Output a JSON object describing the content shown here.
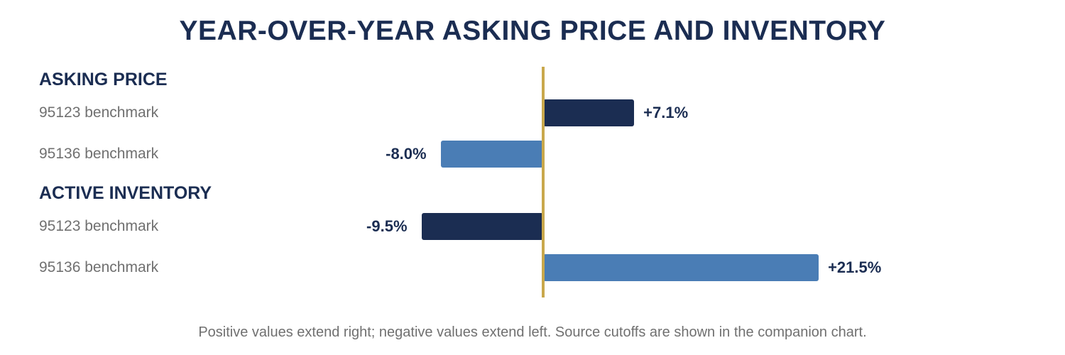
{
  "title": "YEAR-OVER-YEAR ASKING PRICE AND INVENTORY",
  "footnote": "Positive values extend right; negative values extend left. Source cutoffs are shown in the companion chart.",
  "colors": {
    "zero_line": "#c9a84c",
    "series_95123": "#1b2d52",
    "series_95136": "#4a7db5",
    "text_dark": "#1b2d52",
    "text_muted": "#707070"
  },
  "chart_data": {
    "type": "bar",
    "orientation": "horizontal",
    "unit": "%",
    "xlim": [
      -17,
      30
    ],
    "groups": [
      {
        "label": "ASKING PRICE",
        "rows": [
          {
            "label": "95123 benchmark",
            "value": 7.1,
            "value_label": "+7.1%",
            "color_key": "series_95123"
          },
          {
            "label": "95136 benchmark",
            "value": -8.0,
            "value_label": "-8.0%",
            "color_key": "series_95136"
          }
        ]
      },
      {
        "label": "ACTIVE INVENTORY",
        "rows": [
          {
            "label": "95123 benchmark",
            "value": -9.5,
            "value_label": "-9.5%",
            "color_key": "series_95123"
          },
          {
            "label": "95136 benchmark",
            "value": 21.5,
            "value_label": "+21.5%",
            "color_key": "series_95136"
          }
        ]
      }
    ]
  }
}
